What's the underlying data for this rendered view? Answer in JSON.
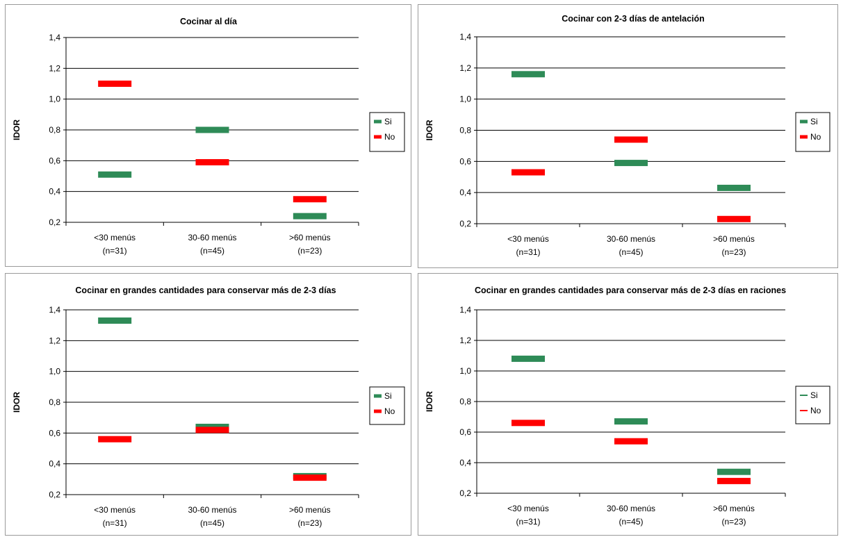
{
  "chart_data": [
    {
      "type": "scatter",
      "title": "Cocinar al día",
      "ylabel": "IDOR",
      "ylim": [
        0.2,
        1.4
      ],
      "yticks": [
        "0,2",
        "0,4",
        "0,6",
        "0,8",
        "1,0",
        "1,2",
        "1,4"
      ],
      "categories": [
        [
          "<30 menús",
          "(n=31)"
        ],
        [
          "30-60 menús",
          "(n=45)"
        ],
        [
          ">60 menús",
          "(n=23)"
        ]
      ],
      "grid": true,
      "legend_position": "right",
      "series": [
        {
          "name": "Si",
          "color": "#2e8b57",
          "values": [
            0.51,
            0.8,
            0.24
          ]
        },
        {
          "name": "No",
          "color": "#ff0000",
          "values": [
            1.1,
            0.59,
            0.35
          ]
        }
      ]
    },
    {
      "type": "scatter",
      "title": "Cocinar con 2-3 días de antelación",
      "ylabel": "IDOR",
      "ylim": [
        0.2,
        1.4
      ],
      "yticks": [
        "0,2",
        "0,4",
        "0,6",
        "0,8",
        "1,0",
        "1,2",
        "1,4"
      ],
      "categories": [
        [
          "<30 menús",
          "(n=31)"
        ],
        [
          "30-60 menús",
          "(n=45)"
        ],
        [
          ">60 menús",
          "(n=23)"
        ]
      ],
      "grid": true,
      "legend_position": "right",
      "series": [
        {
          "name": "Si",
          "color": "#2e8b57",
          "values": [
            1.16,
            0.59,
            0.43
          ]
        },
        {
          "name": "No",
          "color": "#ff0000",
          "values": [
            0.53,
            0.74,
            0.23
          ]
        }
      ]
    },
    {
      "type": "scatter",
      "title": "Cocinar en grandes cantidades para conservar más de 2-3 días",
      "ylabel": "IDOR",
      "ylim": [
        0.2,
        1.4
      ],
      "yticks": [
        "0,2",
        "0,4",
        "0,6",
        "0,8",
        "1,0",
        "1,2",
        "1,4"
      ],
      "categories": [
        [
          "<30 menús",
          "(n=31)"
        ],
        [
          "30-60 menús",
          "(n=45)"
        ],
        [
          ">60 menús",
          "(n=23)"
        ]
      ],
      "grid": true,
      "legend_position": "right",
      "series": [
        {
          "name": "Si",
          "color": "#2e8b57",
          "values": [
            1.33,
            0.64,
            0.32
          ]
        },
        {
          "name": "No",
          "color": "#ff0000",
          "values": [
            0.56,
            0.62,
            0.31
          ]
        }
      ]
    },
    {
      "type": "scatter",
      "title": "Cocinar en grandes cantidades para conservar más de 2-3 días en raciones",
      "ylabel": "IDOR",
      "ylim": [
        0.2,
        1.4
      ],
      "yticks": [
        "0,2",
        "0,4",
        "0,6",
        "0,8",
        "1,0",
        "1,2",
        "1,4"
      ],
      "categories": [
        [
          "<30 menús",
          "(n=31)"
        ],
        [
          "30-60 menús",
          "(n=45)"
        ],
        [
          ">60 menús",
          "(n=23)"
        ]
      ],
      "grid": true,
      "legend_position": "right",
      "series": [
        {
          "name": "Si",
          "color": "#2e8b57",
          "values": [
            1.08,
            0.67,
            0.34
          ]
        },
        {
          "name": "No",
          "color": "#ff0000",
          "values": [
            0.66,
            0.54,
            0.28
          ]
        }
      ]
    }
  ]
}
